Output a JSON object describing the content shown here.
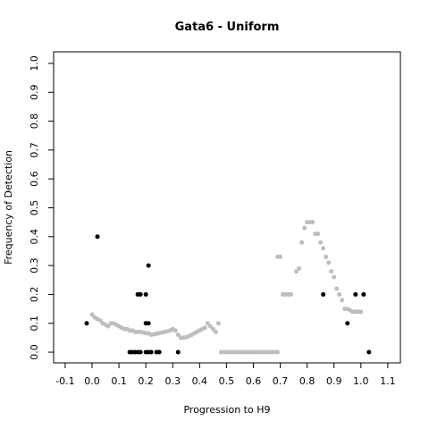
{
  "chart_data": {
    "type": "scatter",
    "title": "Gata6 - Uniform",
    "xlabel": "Progression to H9",
    "ylabel": "Frequency of Detection",
    "xlim": [
      -0.143,
      1.147
    ],
    "ylim": [
      -0.037,
      1.04
    ],
    "xticks": [
      -0.1,
      {
        "value": 0,
        "label": "0.0"
      },
      0.1,
      0.2,
      0.3,
      0.4,
      0.5,
      0.6,
      0.7,
      0.8,
      0.9,
      {
        "value": 1,
        "label": "1.0"
      },
      1.1
    ],
    "yticks": [
      {
        "value": 0,
        "label": "0.0"
      },
      0.1,
      0.2,
      0.3,
      0.4,
      0.5,
      0.6,
      0.7,
      0.8,
      0.9,
      {
        "value": 1,
        "label": "1.0"
      }
    ],
    "series": [
      {
        "color": "#bebebe",
        "x": [
          0,
          0.01,
          0.02,
          0.03,
          0.04,
          0.05,
          0.06,
          0.07,
          0.08,
          0.09,
          0.1,
          0.11,
          0.12,
          0.13,
          0.14,
          0.15,
          0.16,
          0.17,
          0.18,
          0.19,
          0.2,
          0.21,
          0.22,
          0.23,
          0.24,
          0.25,
          0.26,
          0.27,
          0.28,
          0.29,
          0.3,
          0.31,
          0.32,
          0.33,
          0.34,
          0.35,
          0.36,
          0.37,
          0.38,
          0.39,
          0.4,
          0.41,
          0.42,
          0.43,
          0.44,
          0.45,
          0.46,
          0.47,
          0.48,
          0.49,
          0.5,
          0.51,
          0.52,
          0.53,
          0.54,
          0.55,
          0.56,
          0.57,
          0.58,
          0.59,
          0.6,
          0.61,
          0.62,
          0.63,
          0.64,
          0.65,
          0.66,
          0.67,
          0.68,
          0.69,
          0.69,
          0.7,
          0.71,
          0.72,
          0.73,
          0.74,
          0.76,
          0.77,
          0.78,
          0.79,
          0.8,
          0.81,
          0.82,
          0.83,
          0.84,
          0.85,
          0.86,
          0.87,
          0.88,
          0.89,
          0.9,
          0.91,
          0.92,
          0.93,
          0.94,
          0.95,
          0.96,
          0.97,
          0.98,
          0.99,
          1
        ],
        "values": [
          0.13,
          0.12,
          0.115,
          0.11,
          0.1,
          0.095,
          0.09,
          0.1,
          0.1,
          0.095,
          0.09,
          0.085,
          0.08,
          0.08,
          0.075,
          0.075,
          0.07,
          0.07,
          0.07,
          0.068,
          0.066,
          0.065,
          0.06,
          0.062,
          0.064,
          0.066,
          0.068,
          0.07,
          0.072,
          0.075,
          0.08,
          0.075,
          0.06,
          0.05,
          0.05,
          0.052,
          0.055,
          0.06,
          0.065,
          0.07,
          0.075,
          0.08,
          0.085,
          0.1,
          0.09,
          0.08,
          0.07,
          0.1,
          0,
          0,
          0,
          0,
          0,
          0,
          0,
          0,
          0,
          0,
          0,
          0,
          0,
          0,
          0,
          0,
          0,
          0,
          0,
          0,
          0,
          0,
          0.33,
          0.33,
          0.2,
          0.2,
          0.2,
          0.2,
          0.28,
          0.29,
          0.38,
          0.43,
          0.45,
          0.45,
          0.45,
          0.41,
          0.41,
          0.38,
          0.36,
          0.33,
          0.31,
          0.28,
          0.26,
          0.22,
          0.2,
          0.18,
          0.15,
          0.15,
          0.145,
          0.14,
          0.14,
          0.14,
          0.14
        ]
      },
      {
        "color": "#000000",
        "x": [
          -0.02,
          0.02,
          0.14,
          0.15,
          0.16,
          0.17,
          0.18,
          0.17,
          0.18,
          0.2,
          0.2,
          0.21,
          0.2,
          0.21,
          0.22,
          0.24,
          0.25,
          0.21,
          0.32,
          0.86,
          0.95,
          0.98,
          1.01,
          1.03
        ],
        "values": [
          0.1,
          0.4,
          0,
          0,
          0,
          0,
          0,
          0.2,
          0.2,
          0.2,
          0.1,
          0.1,
          0,
          0,
          0,
          0,
          0,
          0.3,
          0,
          0.2,
          0.1,
          0.2,
          0.2,
          0
        ]
      }
    ]
  }
}
